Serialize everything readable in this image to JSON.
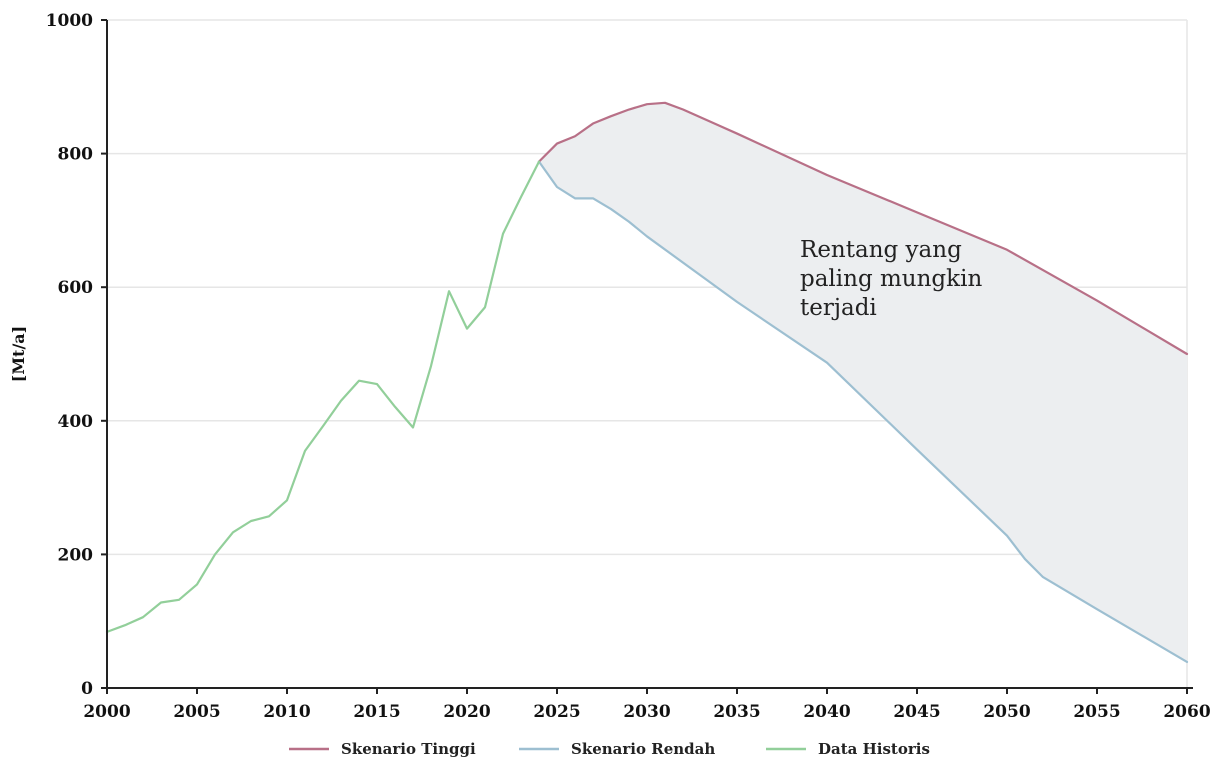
{
  "chart_data": {
    "type": "line",
    "title": "",
    "xlabel": "",
    "ylabel": "[Mt/a]",
    "xlim": [
      2000,
      2060
    ],
    "ylim": [
      0,
      1000
    ],
    "x_ticks": [
      2000,
      2005,
      2010,
      2015,
      2020,
      2025,
      2030,
      2035,
      2040,
      2045,
      2050,
      2055,
      2060
    ],
    "y_ticks": [
      0,
      200,
      400,
      600,
      800,
      1000
    ],
    "grid": true,
    "legend_position": "bottom",
    "annotation": {
      "lines": [
        "Rentang yang",
        "paling mungkin",
        "terjadi"
      ],
      "at": [
        2038.5,
        645
      ]
    },
    "band": {
      "between": [
        "Skenario Tinggi",
        "Skenario Rendah"
      ],
      "color": "#eceef0"
    },
    "series": [
      {
        "name": "Skenario Tinggi",
        "color": "#b87087",
        "points": [
          [
            2024,
            788
          ],
          [
            2025,
            815
          ],
          [
            2026,
            826
          ],
          [
            2027,
            845
          ],
          [
            2028,
            856
          ],
          [
            2029,
            866
          ],
          [
            2030,
            874
          ],
          [
            2031,
            876
          ],
          [
            2032,
            866
          ],
          [
            2035,
            830
          ],
          [
            2040,
            768
          ],
          [
            2045,
            712
          ],
          [
            2050,
            656
          ],
          [
            2055,
            580
          ],
          [
            2060,
            500
          ]
        ]
      },
      {
        "name": "Skenario Rendah",
        "color": "#9dbfd1",
        "points": [
          [
            2024,
            788
          ],
          [
            2025,
            750
          ],
          [
            2026,
            733
          ],
          [
            2027,
            733
          ],
          [
            2028,
            717
          ],
          [
            2029,
            698
          ],
          [
            2030,
            676
          ],
          [
            2035,
            578
          ],
          [
            2040,
            487
          ],
          [
            2045,
            357
          ],
          [
            2050,
            228
          ],
          [
            2051,
            193
          ],
          [
            2052,
            166
          ],
          [
            2055,
            118
          ],
          [
            2060,
            39
          ]
        ]
      },
      {
        "name": "Data Historis",
        "color": "#92cf9a",
        "points": [
          [
            2000,
            84
          ],
          [
            2001,
            94
          ],
          [
            2002,
            106
          ],
          [
            2003,
            128
          ],
          [
            2004,
            132
          ],
          [
            2005,
            155
          ],
          [
            2006,
            200
          ],
          [
            2007,
            233
          ],
          [
            2008,
            250
          ],
          [
            2009,
            257
          ],
          [
            2010,
            281
          ],
          [
            2011,
            355
          ],
          [
            2012,
            392
          ],
          [
            2013,
            430
          ],
          [
            2014,
            460
          ],
          [
            2015,
            455
          ],
          [
            2016,
            421
          ],
          [
            2017,
            390
          ],
          [
            2018,
            482
          ],
          [
            2019,
            594
          ],
          [
            2020,
            538
          ],
          [
            2021,
            570
          ],
          [
            2022,
            680
          ],
          [
            2023,
            735
          ],
          [
            2024,
            788
          ]
        ]
      }
    ]
  }
}
